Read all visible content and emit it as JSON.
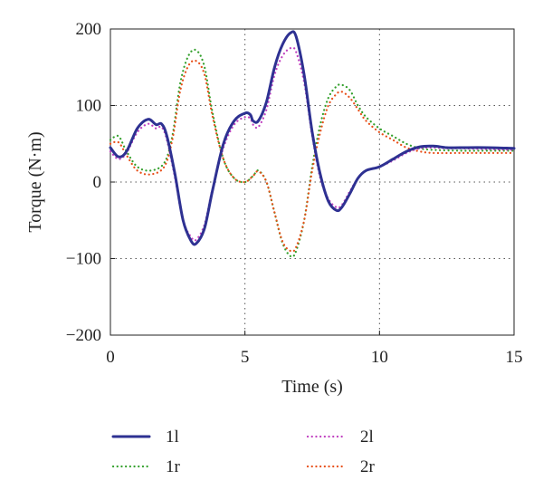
{
  "chart_data": {
    "type": "line",
    "title": "",
    "xlabel": "Time (s)",
    "ylabel": "Torque (N·m)",
    "xlim": [
      0,
      15
    ],
    "ylim": [
      -200,
      200
    ],
    "xticks": [
      0,
      5,
      10,
      15
    ],
    "yticks": [
      -200,
      -100,
      0,
      100,
      200
    ],
    "grid": "dotted, at tick marks",
    "legend_placement": "below chart, two columns",
    "series": [
      {
        "name": "1l",
        "color": "#2e3192",
        "style": "solid",
        "x": [
          0,
          0.3,
          0.6,
          1.0,
          1.4,
          1.7,
          1.9,
          2.1,
          2.4,
          2.7,
          3.0,
          3.2,
          3.5,
          3.8,
          4.2,
          4.6,
          5.0,
          5.2,
          5.3,
          5.5,
          5.8,
          6.1,
          6.4,
          6.7,
          6.9,
          7.2,
          7.5,
          7.8,
          8.1,
          8.4,
          8.6,
          8.9,
          9.2,
          9.5,
          10.0,
          10.5,
          11.0,
          11.5,
          12.0,
          12.5,
          13.0,
          14.0,
          15.0
        ],
        "y": [
          45,
          33,
          40,
          70,
          82,
          75,
          76,
          60,
          10,
          -50,
          -77,
          -80,
          -60,
          -10,
          50,
          80,
          90,
          88,
          80,
          80,
          105,
          150,
          180,
          195,
          190,
          140,
          65,
          10,
          -25,
          -37,
          -33,
          -15,
          5,
          15,
          20,
          30,
          40,
          46,
          47,
          45,
          45,
          45,
          44
        ]
      },
      {
        "name": "1r",
        "color": "#33a02c",
        "style": "dotted",
        "x": [
          0,
          0.3,
          0.6,
          1.0,
          1.5,
          2.0,
          2.3,
          2.6,
          2.9,
          3.2,
          3.5,
          3.8,
          4.2,
          4.6,
          5.0,
          5.3,
          5.5,
          5.8,
          6.1,
          6.4,
          6.7,
          6.9,
          7.2,
          7.5,
          7.8,
          8.1,
          8.4,
          8.6,
          8.9,
          9.2,
          9.5,
          10.0,
          10.5,
          11.0,
          11.5,
          12.0,
          13.0,
          14.0,
          15.0
        ],
        "y": [
          55,
          60,
          40,
          20,
          15,
          25,
          60,
          130,
          165,
          172,
          150,
          90,
          30,
          5,
          0,
          8,
          15,
          0,
          -40,
          -80,
          -97,
          -90,
          -50,
          20,
          75,
          110,
          125,
          127,
          120,
          100,
          85,
          70,
          60,
          50,
          44,
          42,
          41,
          41,
          41
        ]
      },
      {
        "name": "2l",
        "color": "#c040c0",
        "style": "dotted",
        "x": [
          0,
          0.3,
          0.6,
          1.0,
          1.4,
          1.7,
          1.9,
          2.1,
          2.4,
          2.7,
          3.0,
          3.2,
          3.5,
          3.8,
          4.2,
          4.6,
          5.0,
          5.2,
          5.3,
          5.5,
          5.8,
          6.1,
          6.4,
          6.7,
          6.9,
          7.2,
          7.5,
          7.8,
          8.1,
          8.4,
          8.6,
          8.9,
          9.2,
          9.5,
          10.0,
          10.5,
          11.0,
          11.5,
          12.0,
          12.5,
          13.0,
          14.0,
          15.0
        ],
        "y": [
          40,
          30,
          38,
          65,
          76,
          70,
          72,
          55,
          5,
          -50,
          -72,
          -75,
          -55,
          -8,
          45,
          75,
          85,
          83,
          75,
          72,
          95,
          140,
          165,
          175,
          170,
          130,
          60,
          5,
          -22,
          -33,
          -30,
          -12,
          5,
          15,
          20,
          28,
          38,
          44,
          45,
          44,
          44,
          43,
          42
        ]
      },
      {
        "name": "2r",
        "color": "#e8501a",
        "style": "dotted",
        "x": [
          0,
          0.3,
          0.6,
          1.0,
          1.5,
          2.0,
          2.3,
          2.6,
          2.9,
          3.2,
          3.5,
          3.8,
          4.2,
          4.6,
          5.0,
          5.3,
          5.5,
          5.8,
          6.1,
          6.4,
          6.7,
          6.9,
          7.2,
          7.5,
          7.8,
          8.1,
          8.4,
          8.6,
          8.9,
          9.2,
          9.5,
          10.0,
          10.5,
          11.0,
          11.5,
          12.0,
          13.0,
          14.0,
          15.0
        ],
        "y": [
          50,
          52,
          35,
          15,
          10,
          20,
          55,
          120,
          152,
          158,
          140,
          85,
          30,
          5,
          0,
          8,
          14,
          0,
          -40,
          -78,
          -90,
          -85,
          -50,
          15,
          65,
          100,
          115,
          118,
          110,
          95,
          80,
          65,
          55,
          45,
          40,
          38,
          38,
          38,
          38
        ]
      }
    ]
  }
}
